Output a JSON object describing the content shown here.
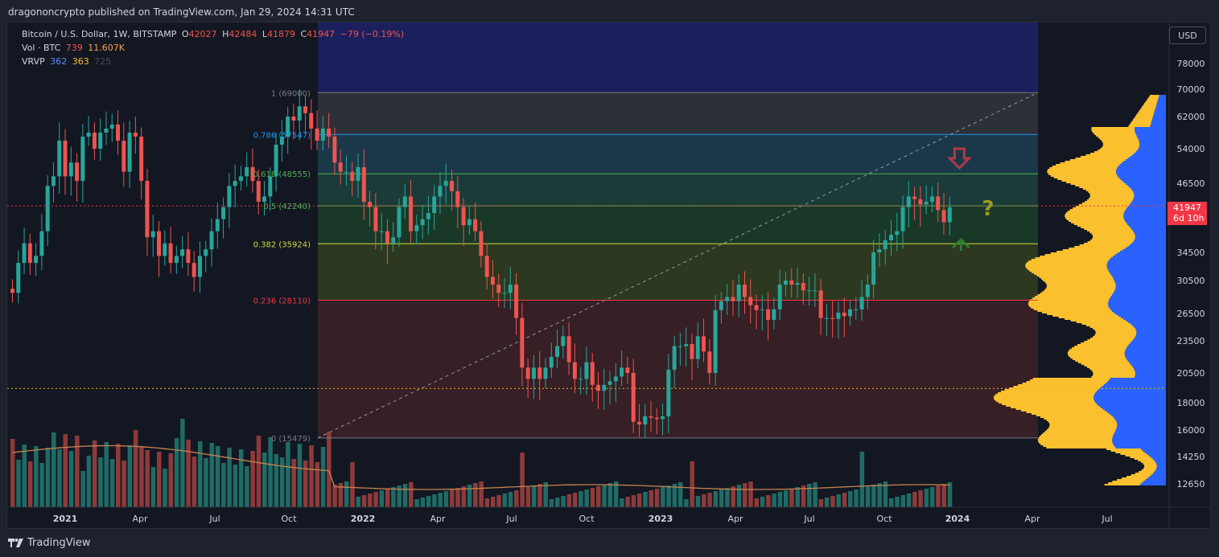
{
  "header": {
    "published": "dragononcrypto published on TradingView.com, Jan 29, 2024 14:31 UTC"
  },
  "legend": {
    "symbol": "Bitcoin / U.S. Dollar, 1W, BITSTAMP",
    "open_label": "O",
    "open": "42027",
    "high_label": "H",
    "high": "42484",
    "low_label": "L",
    "low": "41879",
    "close_label": "C",
    "close": "41947",
    "change": "−79 (−0.19%)",
    "vol_label": "Vol · BTC",
    "vol_1": "739",
    "vol_2": "11.607K",
    "vrvp_label": "VRVP",
    "vrvp_1": "362",
    "vrvp_2": "363",
    "vrvp_3": "725"
  },
  "currency_button": "USD",
  "last_price": {
    "value": "41947",
    "countdown": "6d 10h"
  },
  "footer": {
    "brand": "TradingView"
  },
  "colors": {
    "up": "#26a69a",
    "down": "#ef5350",
    "vol_up": "#1f6b65",
    "vol_down": "#8e3a3a",
    "vrvp_up": "#fbc02d",
    "vrvp_down": "#2962ff"
  },
  "chart_data": {
    "type": "candlestick",
    "symbol": "BTCUSD",
    "interval": "1W",
    "y_ticks": [
      12650,
      14250,
      16000,
      18000,
      20500,
      23500,
      26500,
      30500,
      34500,
      41947,
      46500,
      54000,
      62000,
      70000,
      78000
    ],
    "y_tick_labels": [
      "12650",
      "14250",
      "16000",
      "18000",
      "20500",
      "23500",
      "26500",
      "30500",
      "34500",
      "",
      "46500",
      "54000",
      "62000",
      "70000",
      "78000"
    ],
    "x_ticks": [
      {
        "label": "2021",
        "bold": true
      },
      {
        "label": "Apr"
      },
      {
        "label": "Jul"
      },
      {
        "label": "Oct"
      },
      {
        "label": "2022",
        "bold": true
      },
      {
        "label": "Apr"
      },
      {
        "label": "Jul"
      },
      {
        "label": "Oct"
      },
      {
        "label": "2023",
        "bold": true
      },
      {
        "label": "Apr"
      },
      {
        "label": "Jul"
      },
      {
        "label": "Oct"
      },
      {
        "label": "2024",
        "bold": true
      },
      {
        "label": "Apr"
      },
      {
        "label": "Jul"
      }
    ],
    "fib_levels": [
      {
        "ratio": "1",
        "price": 69000,
        "label": "1 (69000)",
        "color": "#787b86"
      },
      {
        "ratio": "0.786",
        "price": 57547,
        "label": "0.786 (57547)",
        "color": "#2196f3"
      },
      {
        "ratio": "0.618",
        "price": 48555,
        "label": "0.618 (48555)",
        "color": "#4caf50"
      },
      {
        "ratio": "0.5",
        "price": 42240,
        "label": "0.5 (42240)",
        "color": "#4caf50"
      },
      {
        "ratio": "0.382",
        "price": 35924,
        "label": "0.382 (35924)",
        "color": "#cddc39"
      },
      {
        "ratio": "0.236",
        "price": 28110,
        "label": "0.236 (28110)",
        "color": "#f23645"
      },
      {
        "ratio": "0",
        "price": 15479,
        "label": "0 (15479)",
        "color": "#787b86"
      }
    ],
    "horizontal_levels": [
      {
        "price": 42240,
        "style": "dotted",
        "color": "#f23645"
      },
      {
        "price": 19200,
        "style": "dotted",
        "color": "#f0b90b"
      }
    ],
    "annotations": [
      {
        "type": "arrow-down",
        "color": "#b03a48",
        "near_price": 51000,
        "near_date": "2024-01"
      },
      {
        "type": "arrow-up",
        "color": "#2e7d32",
        "near_price": 36500,
        "near_date": "2024-01"
      },
      {
        "type": "question-mark",
        "text": "?",
        "color": "#9a9a20"
      }
    ],
    "weekly_closes": [
      29000,
      33000,
      36000,
      33000,
      34000,
      38000,
      46000,
      48000,
      56000,
      48000,
      51000,
      47000,
      57000,
      58000,
      54000,
      58000,
      59000,
      60000,
      56000,
      49000,
      58000,
      57000,
      47000,
      37000,
      38000,
      34000,
      36000,
      33000,
      34000,
      35000,
      33000,
      31000,
      34000,
      35000,
      38000,
      40000,
      42000,
      46000,
      47000,
      48000,
      50000,
      47000,
      43000,
      44000,
      48000,
      55000,
      57000,
      62000,
      61000,
      65000,
      63000,
      59000,
      56000,
      59000,
      57000,
      51000,
      49000,
      49000,
      47000,
      50000,
      43000,
      42000,
      38000,
      38000,
      36000,
      37000,
      42000,
      44000,
      38000,
      39000,
      40000,
      41000,
      44000,
      46000,
      47000,
      45000,
      42000,
      39000,
      40000,
      38000,
      34000,
      31000,
      30000,
      29000,
      29000,
      30000,
      26000,
      21000,
      20000,
      21000,
      20000,
      21000,
      22000,
      23000,
      24000,
      21500,
      20000,
      20000,
      21500,
      19500,
      19000,
      19500,
      19800,
      20200,
      21000,
      20500,
      16600,
      16400,
      17000,
      16900,
      16800,
      17000,
      20800,
      23000,
      23000,
      23200,
      21800,
      24000,
      22500,
      20500,
      26900,
      28000,
      28500,
      28000,
      30000,
      28500,
      27500,
      26900,
      27000,
      25800,
      27000,
      30000,
      30500,
      30000,
      30200,
      29300,
      29300,
      29300,
      26000,
      26000,
      25900,
      26600,
      26200,
      27000,
      27000,
      28500,
      30000,
      34500,
      35000,
      36500,
      37400,
      38000,
      42000,
      44000,
      43500,
      42500,
      43000,
      44000,
      41500,
      39500,
      41947
    ]
  }
}
